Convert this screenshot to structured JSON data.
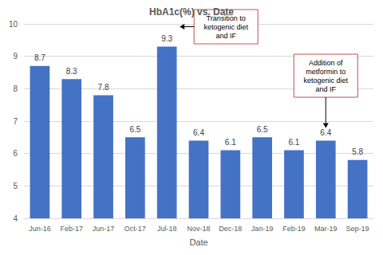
{
  "chart_data": {
    "type": "bar",
    "title": "HbA1c(%) vs. Date",
    "x_label": "Date",
    "categories": [
      "Jun-16",
      "Feb-17",
      "Jun-17",
      "Oct-17",
      "Jul-18",
      "Nov-18",
      "Dec-18",
      "Jan-19",
      "Feb-19",
      "Mar-19",
      "Sep-19"
    ],
    "values": [
      8.7,
      8.3,
      7.8,
      6.5,
      9.3,
      6.4,
      6.1,
      6.5,
      6.1,
      6.4,
      5.8
    ],
    "color": "#4472c4",
    "ylim": [
      4,
      10
    ],
    "yticks": [
      4,
      5,
      6,
      7,
      8,
      9,
      10
    ],
    "grid": true,
    "data_labels": true,
    "annotations": [
      {
        "text": "Transition to ketogenic diet and IF",
        "category": "Jul-18"
      },
      {
        "text": "Addition of metformin to ketogenic diet and IF",
        "category": "Mar-19"
      }
    ]
  }
}
